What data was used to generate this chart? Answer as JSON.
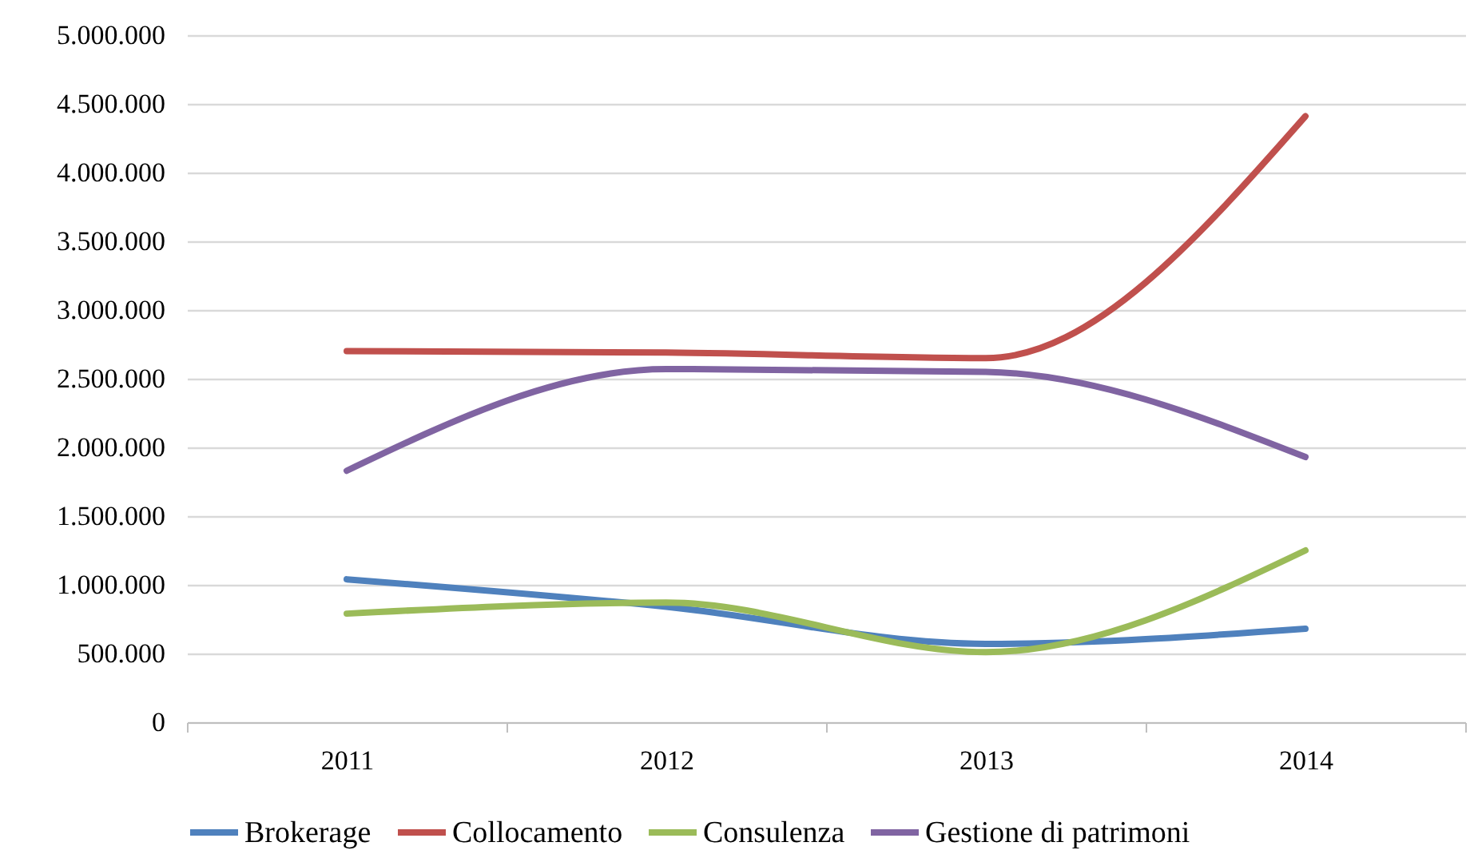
{
  "chart_data": {
    "type": "line",
    "categories": [
      "2011",
      "2012",
      "2013",
      "2014"
    ],
    "series": [
      {
        "name": "Brokerage",
        "color": "#4f81bd",
        "values": [
          1040000,
          840000,
          570000,
          680000
        ]
      },
      {
        "name": "Collocamento",
        "color": "#c0504d",
        "values": [
          2700000,
          2690000,
          2650000,
          4410000
        ]
      },
      {
        "name": "Consulenza",
        "color": "#9bbb59",
        "values": [
          790000,
          870000,
          510000,
          1250000
        ]
      },
      {
        "name": "Gestione di patrimoni",
        "color": "#8064a2",
        "values": [
          1830000,
          2570000,
          2550000,
          1930000
        ]
      }
    ],
    "ylim": [
      0,
      5000000
    ],
    "yticks": [
      {
        "value": 0,
        "label": "0"
      },
      {
        "value": 500000,
        "label": "500.000"
      },
      {
        "value": 1000000,
        "label": "1.000.000"
      },
      {
        "value": 1500000,
        "label": "1.500.000"
      },
      {
        "value": 2000000,
        "label": "2.000.000"
      },
      {
        "value": 2500000,
        "label": "2.500.000"
      },
      {
        "value": 3000000,
        "label": "3.000.000"
      },
      {
        "value": 3500000,
        "label": "3.500.000"
      },
      {
        "value": 4000000,
        "label": "4.000.000"
      },
      {
        "value": 4500000,
        "label": "4.500.000"
      },
      {
        "value": 5000000,
        "label": "5.000.000"
      }
    ],
    "grid": "y",
    "legend": "bottom",
    "line_style": "solid",
    "marker": "none"
  }
}
